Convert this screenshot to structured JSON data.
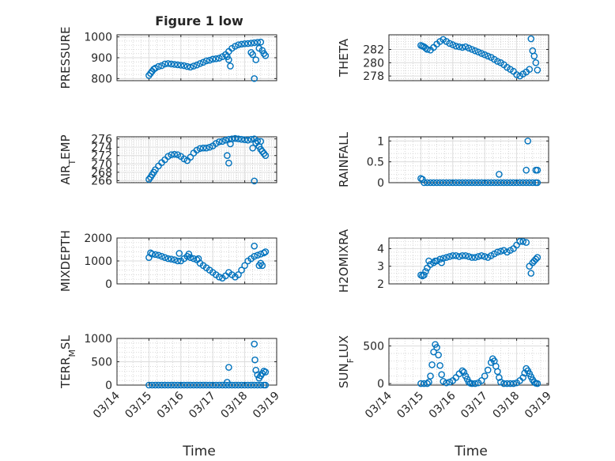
{
  "figure": {
    "title": "Figure 1 low",
    "x_axis_label": "Time",
    "x_tick_labels": [
      "03/14",
      "03/15",
      "03/16",
      "03/17",
      "03/18",
      "03/19"
    ]
  },
  "marker_color": "#0072BD",
  "chart_data": [
    {
      "type": "scatter",
      "ylabel": "PRESSURE",
      "ylim": [
        790,
        1010
      ],
      "yticks": [
        "800",
        "900",
        "1000"
      ],
      "grid": "on",
      "series": [
        {
          "x": [
            15.0,
            15.05,
            15.1,
            15.15,
            15.2,
            15.3,
            15.4,
            15.5,
            15.6,
            15.7,
            15.8,
            15.9,
            16.0,
            16.1,
            16.2,
            16.3,
            16.4,
            16.5,
            16.6,
            16.7,
            16.8,
            16.9,
            17.0,
            17.1,
            17.2,
            17.3,
            17.4,
            17.5,
            17.6,
            17.7,
            17.8,
            17.9,
            18.0,
            18.1,
            18.2,
            18.3,
            18.4,
            18.5,
            17.45,
            17.5,
            17.55,
            18.2,
            18.25,
            18.3,
            18.35,
            18.45,
            18.55,
            18.6,
            18.65
          ],
          "y": [
            815,
            825,
            835,
            845,
            850,
            858,
            862,
            870,
            872,
            870,
            868,
            866,
            864,
            862,
            858,
            855,
            860,
            865,
            872,
            878,
            885,
            888,
            893,
            895,
            898,
            905,
            915,
            930,
            945,
            955,
            962,
            965,
            967,
            968,
            970,
            972,
            974,
            975,
            905,
            890,
            860,
            925,
            915,
            800,
            890,
            945,
            935,
            920,
            910
          ]
        }
      ]
    },
    {
      "type": "scatter",
      "ylabel": "THETA",
      "ylim": [
        277.3,
        284.2
      ],
      "yticks": [
        "278",
        "280",
        "282"
      ],
      "grid": "on",
      "series": [
        {
          "x": [
            15.0,
            15.05,
            15.1,
            15.15,
            15.2,
            15.3,
            15.4,
            15.5,
            15.6,
            15.7,
            15.8,
            15.9,
            16.0,
            16.1,
            16.2,
            16.3,
            16.4,
            16.5,
            16.6,
            16.7,
            16.8,
            16.9,
            17.0,
            17.1,
            17.2,
            17.3,
            17.4,
            17.5,
            17.6,
            17.7,
            17.8,
            17.9,
            18.0,
            18.1,
            18.2,
            18.3,
            18.4,
            18.45,
            18.5,
            18.55,
            18.6,
            18.65
          ],
          "y": [
            282.6,
            282.5,
            282.4,
            282.2,
            282.0,
            281.9,
            282.3,
            282.8,
            283.2,
            283.5,
            283.2,
            282.9,
            282.7,
            282.5,
            282.4,
            282.3,
            282.4,
            282.2,
            282.0,
            281.8,
            281.6,
            281.4,
            281.2,
            281.0,
            280.8,
            280.5,
            280.2,
            280.0,
            279.7,
            279.3,
            279.0,
            278.7,
            278.2,
            278.0,
            278.3,
            278.6,
            279.0,
            283.6,
            281.8,
            281.0,
            280.0,
            278.9
          ]
        }
      ]
    },
    {
      "type": "scatter",
      "ylabel": "AIR_TEMP",
      "ylim": [
        265.5,
        276.5
      ],
      "yticks": [
        "266",
        "268",
        "270",
        "272",
        "274",
        "276"
      ],
      "grid": "on",
      "series": [
        {
          "x": [
            15.0,
            15.05,
            15.1,
            15.15,
            15.2,
            15.3,
            15.4,
            15.5,
            15.6,
            15.7,
            15.8,
            15.9,
            16.0,
            16.1,
            16.2,
            16.3,
            16.4,
            16.5,
            16.6,
            16.7,
            16.8,
            16.9,
            17.0,
            17.1,
            17.2,
            17.3,
            17.4,
            17.5,
            17.6,
            17.7,
            17.8,
            17.9,
            18.0,
            18.1,
            18.2,
            18.3,
            18.4,
            18.5,
            17.45,
            17.5,
            17.55,
            18.25,
            18.3,
            18.35,
            18.45,
            18.5,
            18.55,
            18.6,
            18.65
          ],
          "y": [
            266.3,
            266.8,
            267.4,
            268.0,
            268.6,
            269.5,
            270.3,
            271.0,
            271.8,
            272.2,
            272.3,
            272.2,
            271.8,
            271.2,
            270.8,
            271.6,
            272.6,
            273.3,
            273.7,
            273.8,
            273.8,
            274.0,
            274.3,
            274.9,
            275.3,
            275.4,
            275.7,
            275.9,
            276.0,
            276.1,
            276.0,
            275.9,
            275.8,
            275.7,
            275.9,
            276.0,
            275.5,
            275.4,
            272.0,
            270.2,
            274.8,
            273.8,
            265.9,
            275.0,
            274.2,
            273.5,
            273.0,
            272.5,
            272.0
          ]
        }
      ]
    },
    {
      "type": "scatter",
      "ylabel": "RAINFALL",
      "ylim": [
        0,
        1.1
      ],
      "yticks": [
        "0",
        "0.5",
        "1"
      ],
      "grid": "on",
      "series": [
        {
          "x": [
            15.0,
            15.05,
            15.1,
            15.2,
            15.3,
            15.4,
            15.5,
            15.6,
            15.7,
            15.8,
            15.9,
            16.0,
            16.1,
            16.2,
            16.3,
            16.4,
            16.5,
            16.6,
            16.7,
            16.8,
            16.9,
            17.0,
            17.1,
            17.2,
            17.3,
            17.4,
            17.5,
            17.6,
            17.7,
            17.8,
            17.9,
            18.0,
            18.1,
            18.2,
            18.3,
            18.4,
            18.5,
            18.6,
            18.65,
            17.45,
            18.3,
            18.35,
            18.6,
            18.65
          ],
          "y": [
            0.1,
            0.08,
            0,
            0,
            0,
            0,
            0,
            0,
            0,
            0,
            0,
            0,
            0,
            0,
            0,
            0,
            0,
            0,
            0,
            0,
            0,
            0,
            0,
            0,
            0,
            0,
            0,
            0,
            0,
            0,
            0,
            0,
            0,
            0,
            0,
            0,
            0,
            0,
            0,
            0.2,
            0.3,
            1.0,
            0.3,
            0.3
          ]
        }
      ]
    },
    {
      "type": "scatter",
      "ylabel": "MIXDEPTH",
      "ylim": [
        0,
        2000
      ],
      "yticks": [
        "0",
        "1000",
        "2000"
      ],
      "grid": "on",
      "series": [
        {
          "x": [
            15.0,
            15.05,
            15.1,
            15.2,
            15.3,
            15.4,
            15.5,
            15.6,
            15.7,
            15.8,
            15.9,
            16.0,
            16.1,
            16.2,
            16.3,
            16.4,
            16.5,
            16.6,
            16.7,
            16.8,
            16.9,
            17.0,
            17.1,
            17.2,
            17.3,
            17.4,
            17.5,
            17.6,
            17.7,
            17.8,
            17.9,
            18.0,
            18.1,
            18.2,
            18.3,
            18.4,
            18.5,
            18.6,
            18.65,
            15.95,
            16.25,
            16.55,
            18.3,
            18.45,
            18.5,
            18.55
          ],
          "y": [
            1150,
            1350,
            1300,
            1280,
            1250,
            1200,
            1150,
            1100,
            1080,
            1050,
            1000,
            1000,
            1100,
            1200,
            1150,
            1100,
            1050,
            900,
            800,
            700,
            600,
            500,
            400,
            300,
            250,
            350,
            500,
            400,
            300,
            400,
            600,
            800,
            1000,
            1100,
            1200,
            1250,
            1300,
            1350,
            1400,
            1330,
            1300,
            1100,
            1650,
            800,
            900,
            800
          ]
        }
      ]
    },
    {
      "type": "scatter",
      "ylabel": "H2OMIXRA",
      "ylim": [
        2,
        4.6
      ],
      "yticks": [
        "2",
        "3",
        "4"
      ],
      "grid": "on",
      "series": [
        {
          "x": [
            15.0,
            15.05,
            15.1,
            15.15,
            15.2,
            15.3,
            15.4,
            15.5,
            15.6,
            15.7,
            15.8,
            15.9,
            16.0,
            16.1,
            16.2,
            16.3,
            16.4,
            16.5,
            16.6,
            16.7,
            16.8,
            16.9,
            17.0,
            17.1,
            17.2,
            17.3,
            17.4,
            17.5,
            17.6,
            17.7,
            17.8,
            17.9,
            18.0,
            18.1,
            18.2,
            18.3,
            18.4,
            18.45,
            18.5,
            18.55,
            18.6,
            18.65,
            15.25,
            15.45,
            15.65
          ],
          "y": [
            2.5,
            2.45,
            2.5,
            2.7,
            2.9,
            3.1,
            3.2,
            3.3,
            3.4,
            3.45,
            3.5,
            3.55,
            3.6,
            3.6,
            3.55,
            3.6,
            3.6,
            3.55,
            3.5,
            3.5,
            3.55,
            3.6,
            3.55,
            3.5,
            3.6,
            3.7,
            3.8,
            3.85,
            3.9,
            3.8,
            3.9,
            4.0,
            4.2,
            4.4,
            4.4,
            4.35,
            3.0,
            2.6,
            3.2,
            3.3,
            3.4,
            3.5,
            3.3,
            3.3,
            3.2
          ]
        }
      ]
    },
    {
      "type": "scatter",
      "ylabel": "TERR_MSL",
      "ylim": [
        0,
        1000
      ],
      "yticks": [
        "0",
        "500",
        "1000"
      ],
      "grid": "on",
      "series": [
        {
          "x": [
            15.0,
            15.1,
            15.2,
            15.3,
            15.4,
            15.5,
            15.6,
            15.7,
            15.8,
            15.9,
            16.0,
            16.1,
            16.2,
            16.3,
            16.4,
            16.5,
            16.6,
            16.7,
            16.8,
            16.9,
            17.0,
            17.1,
            17.2,
            17.3,
            17.4,
            17.5,
            17.6,
            17.7,
            17.8,
            17.9,
            18.0,
            18.1,
            18.2,
            18.3,
            18.4,
            18.5,
            18.6,
            18.65,
            17.45,
            17.5,
            18.3,
            18.32,
            18.35,
            18.4,
            18.45,
            18.5,
            18.55,
            18.6,
            18.65
          ],
          "y": [
            0,
            0,
            0,
            0,
            0,
            0,
            0,
            0,
            0,
            0,
            0,
            0,
            0,
            0,
            0,
            0,
            0,
            0,
            0,
            0,
            0,
            0,
            0,
            0,
            0,
            0,
            0,
            0,
            0,
            0,
            0,
            0,
            0,
            0,
            0,
            0,
            0,
            0,
            60,
            380,
            880,
            540,
            320,
            220,
            150,
            200,
            250,
            300,
            280
          ]
        }
      ]
    },
    {
      "type": "scatter",
      "ylabel": "SUN_FLUX",
      "ylim": [
        -20,
        600
      ],
      "yticks": [
        "0",
        "500"
      ],
      "grid": "on",
      "series": [
        {
          "x": [
            15.0,
            15.1,
            15.2,
            15.25,
            15.3,
            15.35,
            15.4,
            15.45,
            15.5,
            15.55,
            15.6,
            15.65,
            15.7,
            15.8,
            15.9,
            16.0,
            16.1,
            16.2,
            16.3,
            16.35,
            16.4,
            16.45,
            16.5,
            16.55,
            16.6,
            16.7,
            16.8,
            16.9,
            17.0,
            17.1,
            17.2,
            17.25,
            17.3,
            17.35,
            17.4,
            17.45,
            17.5,
            17.6,
            17.7,
            17.8,
            17.9,
            18.0,
            18.1,
            18.2,
            18.25,
            18.3,
            18.35,
            18.4,
            18.45,
            18.5,
            18.55,
            18.6,
            18.65
          ],
          "y": [
            0,
            0,
            0,
            20,
            100,
            250,
            420,
            520,
            480,
            380,
            240,
            120,
            30,
            10,
            20,
            40,
            80,
            130,
            170,
            150,
            100,
            60,
            20,
            5,
            0,
            0,
            10,
            40,
            100,
            180,
            280,
            330,
            300,
            230,
            160,
            80,
            20,
            0,
            0,
            0,
            0,
            10,
            40,
            80,
            140,
            200,
            170,
            130,
            90,
            50,
            20,
            5,
            0
          ]
        }
      ]
    }
  ]
}
